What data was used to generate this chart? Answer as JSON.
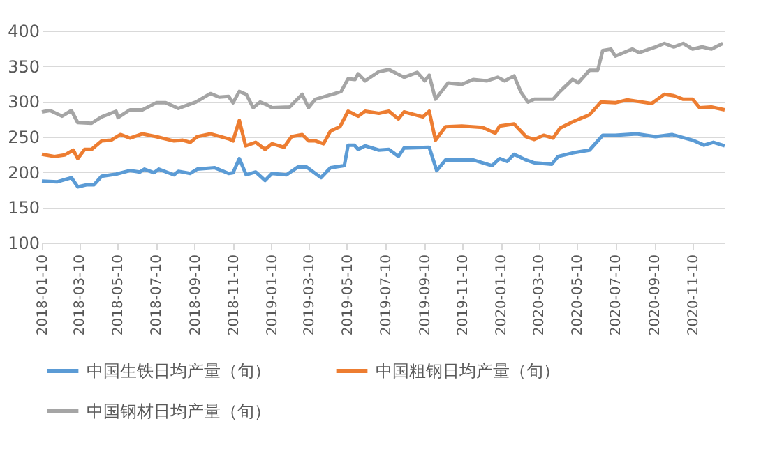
{
  "chart_data": {
    "type": "line",
    "xlim": [
      "2018-01-10",
      "2020-12-31"
    ],
    "xticks": [
      "2018-01-10",
      "2018-03-10",
      "2018-05-10",
      "2018-07-10",
      "2018-09-10",
      "2018-11-10",
      "2019-01-10",
      "2019-03-10",
      "2019-05-10",
      "2019-07-10",
      "2019-09-10",
      "2019-11-10",
      "2020-01-10",
      "2020-03-10",
      "2020-05-10",
      "2020-07-10",
      "2020-09-10",
      "2020-11-10"
    ],
    "ylim": [
      100,
      400
    ],
    "yticks": [
      100,
      150,
      200,
      250,
      300,
      350,
      400
    ],
    "grid": "y",
    "legend": "bottom",
    "marker": "none",
    "line_style": "solid",
    "series": [
      {
        "name": "中国生铁日均产量（旬）",
        "color": "#5b9bd5",
        "x": [
          "2018-01-10",
          "2018-02-03",
          "2018-02-26",
          "2018-03-08",
          "2018-03-23",
          "2018-04-03",
          "2018-04-15",
          "2018-05-08",
          "2018-05-30",
          "2018-06-15",
          "2018-06-22",
          "2018-07-07",
          "2018-07-15",
          "2018-08-08",
          "2018-08-15",
          "2018-09-03",
          "2018-09-14",
          "2018-10-12",
          "2018-11-03",
          "2018-11-10",
          "2018-11-20",
          "2018-12-01",
          "2018-12-16",
          "2018-12-31",
          "2019-01-11",
          "2019-02-03",
          "2019-02-21",
          "2019-03-07",
          "2019-03-30",
          "2019-04-14",
          "2019-05-06",
          "2019-05-12",
          "2019-05-22",
          "2019-05-28",
          "2019-06-08",
          "2019-06-30",
          "2019-07-16",
          "2019-07-31",
          "2019-08-09",
          "2019-09-18",
          "2019-09-30",
          "2019-10-14",
          "2019-11-27",
          "2019-12-27",
          "2020-01-08",
          "2020-01-20",
          "2020-01-31",
          "2020-02-19",
          "2020-03-03",
          "2020-03-31",
          "2020-04-10",
          "2020-05-03",
          "2020-05-30",
          "2020-06-20",
          "2020-07-10",
          "2020-08-13",
          "2020-09-12",
          "2020-10-08",
          "2020-11-10",
          "2020-11-28",
          "2020-12-13",
          "2020-12-31"
        ],
        "values": [
          187,
          186,
          192,
          179,
          182,
          182,
          194,
          197,
          202,
          200,
          204,
          199,
          204,
          196,
          201,
          198,
          204,
          206,
          198,
          199,
          219,
          196,
          200,
          188,
          198,
          196,
          207,
          207,
          192,
          206,
          209,
          238,
          238,
          232,
          237,
          231,
          232,
          222,
          234,
          235,
          202,
          217,
          217,
          209,
          219,
          215,
          225,
          217,
          213,
          211,
          222,
          227,
          231,
          252,
          252,
          254,
          250,
          253,
          245,
          238,
          242,
          237
        ]
      },
      {
        "name": "中国粗钢日均产量（旬）",
        "color": "#ed7d31",
        "x": [
          "2018-01-10",
          "2018-01-30",
          "2018-02-15",
          "2018-03-01",
          "2018-03-08",
          "2018-03-19",
          "2018-03-30",
          "2018-04-15",
          "2018-04-30",
          "2018-05-15",
          "2018-05-30",
          "2018-06-19",
          "2018-07-11",
          "2018-08-08",
          "2018-08-22",
          "2018-09-03",
          "2018-09-14",
          "2018-10-05",
          "2018-11-03",
          "2018-11-10",
          "2018-11-20",
          "2018-11-30",
          "2018-12-16",
          "2018-12-31",
          "2019-01-11",
          "2019-01-30",
          "2019-02-11",
          "2019-02-28",
          "2019-03-10",
          "2019-03-21",
          "2019-04-03",
          "2019-04-14",
          "2019-04-29",
          "2019-05-12",
          "2019-05-28",
          "2019-06-08",
          "2019-06-30",
          "2019-07-16",
          "2019-07-31",
          "2019-08-09",
          "2019-09-08",
          "2019-09-18",
          "2019-09-28",
          "2019-10-14",
          "2019-11-09",
          "2019-12-12",
          "2020-01-01",
          "2020-01-08",
          "2020-01-31",
          "2020-02-19",
          "2020-03-03",
          "2020-03-18",
          "2020-04-02",
          "2020-04-13",
          "2020-05-03",
          "2020-05-30",
          "2020-06-17",
          "2020-07-10",
          "2020-07-29",
          "2020-09-06",
          "2020-09-26",
          "2020-10-11",
          "2020-10-26",
          "2020-11-10",
          "2020-11-21",
          "2020-12-10",
          "2020-12-31"
        ],
        "values": [
          225,
          222,
          224,
          231,
          219,
          232,
          232,
          244,
          245,
          253,
          248,
          254,
          250,
          244,
          245,
          242,
          250,
          254,
          247,
          244,
          273,
          237,
          242,
          232,
          240,
          235,
          250,
          253,
          244,
          244,
          240,
          258,
          264,
          286,
          279,
          286,
          283,
          286,
          275,
          285,
          278,
          286,
          245,
          264,
          265,
          263,
          255,
          265,
          268,
          250,
          246,
          252,
          248,
          262,
          271,
          281,
          299,
          298,
          302,
          297,
          310,
          308,
          303,
          303,
          291,
          292,
          288
        ]
      },
      {
        "name": "中国钢材日均产量（旬）",
        "color": "#a5a5a5",
        "x": [
          "2018-01-10",
          "2018-01-23",
          "2018-02-11",
          "2018-02-26",
          "2018-03-08",
          "2018-03-30",
          "2018-04-15",
          "2018-05-08",
          "2018-05-11",
          "2018-05-30",
          "2018-06-19",
          "2018-07-11",
          "2018-07-26",
          "2018-08-15",
          "2018-09-12",
          "2018-10-05",
          "2018-10-19",
          "2018-11-03",
          "2018-11-10",
          "2018-11-20",
          "2018-12-01",
          "2018-12-12",
          "2018-12-23",
          "2019-01-03",
          "2019-01-11",
          "2019-02-08",
          "2019-02-28",
          "2019-03-10",
          "2019-03-21",
          "2019-04-21",
          "2019-05-01",
          "2019-05-12",
          "2019-05-23",
          "2019-05-28",
          "2019-06-08",
          "2019-06-30",
          "2019-07-16",
          "2019-08-09",
          "2019-08-30",
          "2019-09-11",
          "2019-09-18",
          "2019-09-28",
          "2019-10-18",
          "2019-11-09",
          "2019-11-27",
          "2019-12-19",
          "2020-01-05",
          "2020-01-16",
          "2020-01-31",
          "2020-02-11",
          "2020-02-22",
          "2020-03-03",
          "2020-04-02",
          "2020-04-13",
          "2020-05-03",
          "2020-05-12",
          "2020-05-30",
          "2020-06-12",
          "2020-06-20",
          "2020-07-03",
          "2020-07-10",
          "2020-08-06",
          "2020-08-17",
          "2020-09-12",
          "2020-09-26",
          "2020-10-11",
          "2020-10-26",
          "2020-11-10",
          "2020-11-25",
          "2020-12-10",
          "2020-12-28"
        ],
        "values": [
          285,
          287,
          279,
          287,
          270,
          269,
          278,
          286,
          277,
          288,
          288,
          298,
          298,
          290,
          299,
          311,
          306,
          307,
          298,
          314,
          310,
          291,
          299,
          295,
          291,
          292,
          310,
          291,
          303,
          311,
          314,
          332,
          331,
          339,
          329,
          342,
          345,
          334,
          341,
          329,
          337,
          303,
          326,
          324,
          331,
          329,
          334,
          329,
          336,
          313,
          299,
          303,
          303,
          314,
          331,
          326,
          344,
          344,
          372,
          374,
          364,
          374,
          369,
          377,
          382,
          377,
          382,
          374,
          377,
          374,
          382
        ]
      }
    ]
  }
}
